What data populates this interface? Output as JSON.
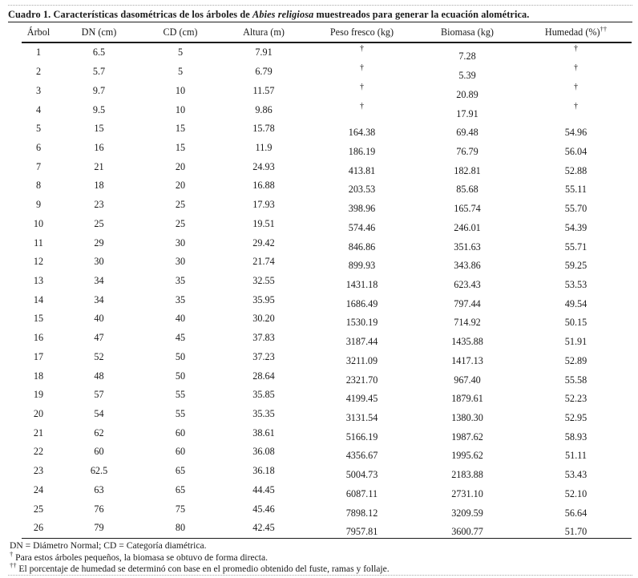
{
  "caption": {
    "label": "Cuadro 1.",
    "before_species": " Características dasométricas de los árboles de ",
    "species": "Abies religiosa",
    "after_species": " muestreados para generar la ecuación alométrica."
  },
  "table": {
    "dagger": "†",
    "columns": [
      {
        "label": "Árbol",
        "sup": ""
      },
      {
        "label": "DN (cm)",
        "sup": ""
      },
      {
        "label": "CD (cm)",
        "sup": ""
      },
      {
        "label": "Altura (m)",
        "sup": ""
      },
      {
        "label": "Peso fresco (kg)",
        "sup": ""
      },
      {
        "label": "Biomasa (kg)",
        "sup": ""
      },
      {
        "label": "Humedad (%)",
        "sup": "††"
      }
    ],
    "rows": [
      [
        "1",
        "6.5",
        "5",
        "7.91",
        "†",
        "7.28",
        "†"
      ],
      [
        "2",
        "5.7",
        "5",
        "6.79",
        "†",
        "5.39",
        "†"
      ],
      [
        "3",
        "9.7",
        "10",
        "11.57",
        "†",
        "20.89",
        "†"
      ],
      [
        "4",
        "9.5",
        "10",
        "9.86",
        "†",
        "17.91",
        "†"
      ],
      [
        "5",
        "15",
        "15",
        "15.78",
        "164.38",
        "69.48",
        "54.96"
      ],
      [
        "6",
        "16",
        "15",
        "11.9",
        "186.19",
        "76.79",
        "56.04"
      ],
      [
        "7",
        "21",
        "20",
        "24.93",
        "413.81",
        "182.81",
        "52.88"
      ],
      [
        "8",
        "18",
        "20",
        "16.88",
        "203.53",
        "85.68",
        "55.11"
      ],
      [
        "9",
        "23",
        "25",
        "17.93",
        "398.96",
        "165.74",
        "55.70"
      ],
      [
        "10",
        "25",
        "25",
        "19.51",
        "574.46",
        "246.01",
        "54.39"
      ],
      [
        "11",
        "29",
        "30",
        "29.42",
        "846.86",
        "351.63",
        "55.71"
      ],
      [
        "12",
        "30",
        "30",
        "21.74",
        "899.93",
        "343.86",
        "59.25"
      ],
      [
        "13",
        "34",
        "35",
        "32.55",
        "1431.18",
        "623.43",
        "53.53"
      ],
      [
        "14",
        "34",
        "35",
        "35.95",
        "1686.49",
        "797.44",
        "49.54"
      ],
      [
        "15",
        "40",
        "40",
        "30.20",
        "1530.19",
        "714.92",
        "50.15"
      ],
      [
        "16",
        "47",
        "45",
        "37.83",
        "3187.44",
        "1435.88",
        "51.91"
      ],
      [
        "17",
        "52",
        "50",
        "37.23",
        "3211.09",
        "1417.13",
        "52.89"
      ],
      [
        "18",
        "48",
        "50",
        "28.64",
        "2321.70",
        "967.40",
        "55.58"
      ],
      [
        "19",
        "57",
        "55",
        "35.85",
        "4199.45",
        "1879.61",
        "52.23"
      ],
      [
        "20",
        "54",
        "55",
        "35.35",
        "3131.54",
        "1380.30",
        "52.95"
      ],
      [
        "21",
        "62",
        "60",
        "38.61",
        "5166.19",
        "1987.62",
        "58.93"
      ],
      [
        "22",
        "60",
        "60",
        "36.08",
        "4356.67",
        "1995.62",
        "51.11"
      ],
      [
        "23",
        "62.5",
        "65",
        "36.18",
        "5004.73",
        "2183.88",
        "53.43"
      ],
      [
        "24",
        "63",
        "65",
        "44.45",
        "6087.11",
        "2731.10",
        "52.10"
      ],
      [
        "25",
        "76",
        "75",
        "45.46",
        "7898.12",
        "3209.59",
        "56.64"
      ],
      [
        "26",
        "79",
        "80",
        "42.45",
        "7957.81",
        "3600.77",
        "51.70"
      ]
    ]
  },
  "footnotes": [
    {
      "sup": "",
      "text": "DN = Diámetro Normal; CD = Categoría diamétrica."
    },
    {
      "sup": "†",
      "text": " Para estos árboles pequeños, la biomasa se obtuvo de forma directa."
    },
    {
      "sup": "††",
      "text": " El porcentaje de humedad se determinó con base en el promedio obtenido del fuste, ramas y follaje."
    }
  ]
}
